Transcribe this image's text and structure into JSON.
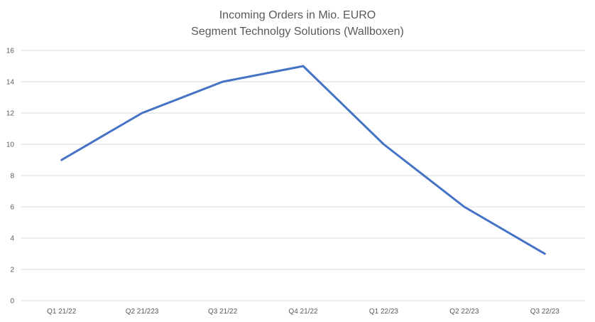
{
  "chart_data": {
    "type": "line",
    "title": "Incoming Orders in Mio. EURO",
    "subtitle": "Segment Technolgy Solutions (Wallboxen)",
    "xlabel": "",
    "ylabel": "",
    "categories": [
      "Q1 21/22",
      "Q2 21/223",
      "Q3 21/22",
      "Q4 21/22",
      "Q1 22/23",
      "Q2 22/23",
      "Q3 22/23"
    ],
    "series": [
      {
        "values": [
          9,
          12,
          14,
          15,
          10,
          6,
          3
        ],
        "color": "#4472C4"
      }
    ],
    "ylim": [
      0,
      16
    ],
    "yticks": [
      "0",
      "2",
      "4",
      "6",
      "8",
      "10",
      "12",
      "14",
      "16"
    ],
    "grid": true,
    "legend": "none",
    "gridline_color": "#d9d9d9",
    "text_color": "#595959"
  }
}
